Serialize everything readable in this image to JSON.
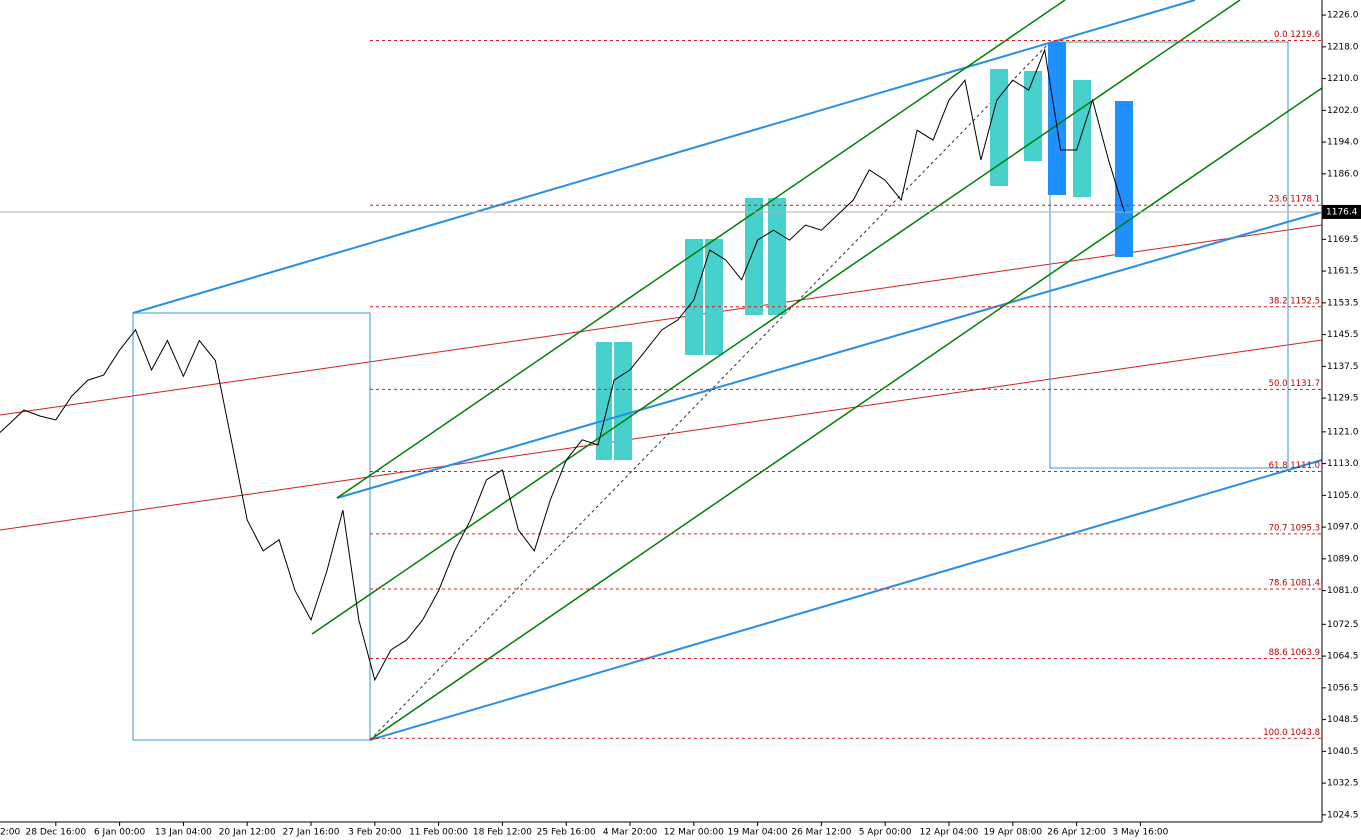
{
  "chart_data": {
    "type": "line",
    "categories": [
      "2:00",
      null,
      null,
      null,
      "28 Dec 16:00",
      null,
      null,
      null,
      "6 Jan 00:00",
      null,
      null,
      null,
      "13 Jan 04:00",
      null,
      null,
      null,
      "20 Jan 12:00",
      null,
      null,
      null,
      "27 Jan 16:00",
      null,
      null,
      null,
      "3 Feb 20:00",
      null,
      null,
      null,
      "11 Feb 00:00",
      null,
      null,
      null,
      "18 Feb 12:00",
      null,
      null,
      null,
      "25 Feb 16:00",
      null,
      null,
      null,
      "4 Mar 20:00",
      null,
      null,
      null,
      "12 Mar 00:00",
      null,
      null,
      null,
      "19 Mar 04:00",
      null,
      null,
      null,
      "26 Mar 12:00",
      null,
      null,
      null,
      "5 Apr 00:00",
      null,
      null,
      null,
      "12 Apr 04:00",
      null,
      null,
      null,
      "19 Apr 08:00",
      null,
      null,
      null,
      "26 Apr 12:00",
      null,
      null,
      null,
      "3 May 16:00"
    ],
    "values": [
      1119,
      1122.7,
      1126.5,
      1125,
      1124,
      1130,
      1134,
      1135.3,
      1141.6,
      1146.7,
      1136.6,
      1144,
      1135,
      1144,
      1139,
      1119,
      1098.8,
      1091,
      1093.8,
      1081,
      1073.6,
      1086,
      1101.3,
      1073.6,
      1058.5,
      1066,
      1068.6,
      1073.6,
      1081,
      1091,
      1098.8,
      1108.9,
      1111.4,
      1096.3,
      1091,
      1103.8,
      1113.9,
      1119,
      1117.7,
      1134,
      1136.6,
      1141.6,
      1146.7,
      1149.2,
      1154.2,
      1166.8,
      1164.3,
      1159.3,
      1169.3,
      1171.8,
      1169.3,
      1173.1,
      1171.8,
      1175.6,
      1179.4,
      1187,
      1184.4,
      1179.4,
      1197,
      1194.5,
      1204.6,
      1209.6,
      1189.5,
      1204.6,
      1209.6,
      1207.1,
      1217.2,
      1192,
      1192,
      1204.6,
      1189.5,
      1176.4,
      null
    ],
    "color": "#000000",
    "ylim": [
      1022.7,
      1229.8
    ],
    "yticks": [
      {
        "value": 1226,
        "label": "1226.0"
      },
      {
        "value": 1218,
        "label": "1218.0"
      },
      {
        "value": 1210,
        "label": "1210.0"
      },
      {
        "value": 1202,
        "label": "1202.0"
      },
      {
        "value": 1194,
        "label": "1194.0"
      },
      {
        "value": 1186,
        "label": "1186.0"
      },
      1169.5,
      1161.5,
      1153.5,
      1145.5,
      1137.5,
      1129.5,
      {
        "value": 1121,
        "label": "1121.0"
      },
      {
        "value": 1113,
        "label": "1113.0"
      },
      {
        "value": 1105,
        "label": "1105.0"
      },
      {
        "value": 1097,
        "label": "1097.0"
      },
      {
        "value": 1089,
        "label": "1089.0"
      },
      {
        "value": 1081,
        "label": "1081.0"
      },
      1072.5,
      1064.5,
      1056.5,
      1048.5,
      1040.5,
      1032.5,
      1024.5
    ],
    "current_price": 1176.4,
    "fib_levels": [
      {
        "value": 1219.6,
        "label": "0.0 1219.6"
      },
      {
        "value": 1178.1,
        "label": "23.6 1178.1"
      },
      {
        "value": 1152.5,
        "label": "38.2 1152.5"
      },
      {
        "value": 1131.7,
        "label": "50.0 1131.7"
      },
      {
        "value": 1111.0,
        "label": "61.8 1111.0"
      },
      {
        "value": 1095.3,
        "label": "70.7 1095.3"
      },
      {
        "value": 1081.4,
        "label": "78.6 1081.4"
      },
      {
        "value": 1063.9,
        "label": "88.6 1063.9"
      },
      {
        "value": 1043.8,
        "label": "100.0 1043.8"
      }
    ]
  }
}
